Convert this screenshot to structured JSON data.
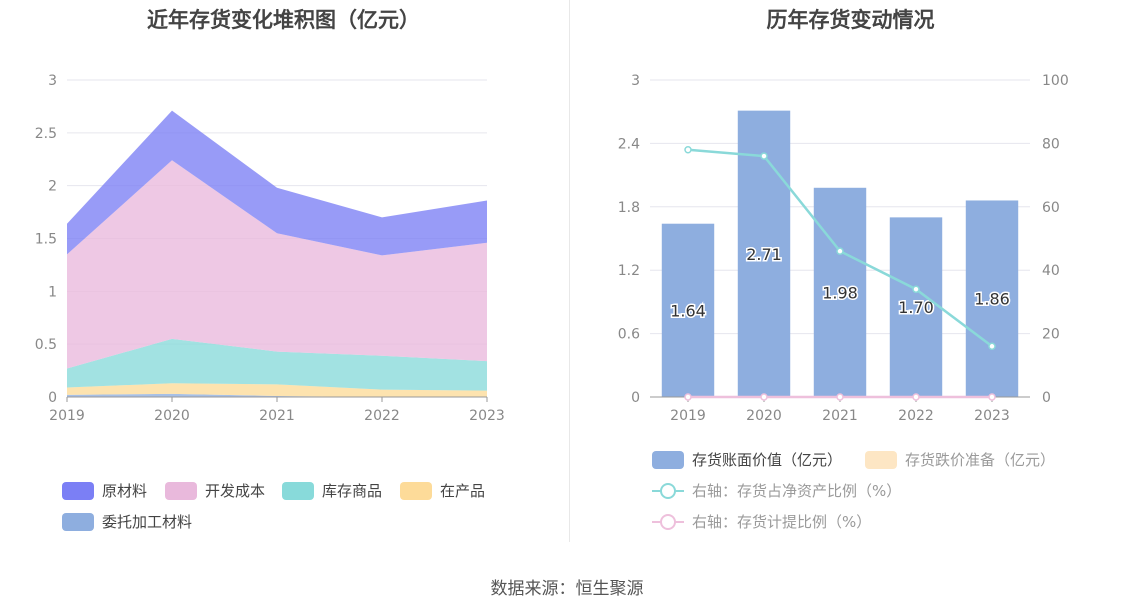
{
  "left_chart": {
    "title": "近年存货变化堆积图（亿元）",
    "legend": [
      {
        "name": "原材料",
        "color": "#7b7ff5"
      },
      {
        "name": "开发成本",
        "color": "#e9b9dc"
      },
      {
        "name": "库存商品",
        "color": "#88dada"
      },
      {
        "name": "在产品",
        "color": "#fddb99"
      },
      {
        "name": "委托加工材料",
        "color": "#8eaedf"
      }
    ]
  },
  "right_chart": {
    "title": "历年存货变动情况",
    "legend": [
      {
        "name": "存货账面价值（亿元）",
        "color": "#8eaedf",
        "kind": "box",
        "dim": false
      },
      {
        "name": "存货跌价准备（亿元）",
        "color": "#fde6c4",
        "kind": "box",
        "dim": true
      },
      {
        "name": "右轴：存货占净资产比例（%）",
        "color": "#8ad9d9",
        "kind": "line",
        "dim": true
      },
      {
        "name": "右轴：存货计提比例（%）",
        "color": "#eec0dc",
        "kind": "line",
        "dim": true
      }
    ]
  },
  "source": "数据来源：恒生聚源",
  "chart_data": [
    {
      "type": "area",
      "stacked": true,
      "title": "近年存货变化堆积图（亿元）",
      "categories": [
        "2019",
        "2020",
        "2021",
        "2022",
        "2023"
      ],
      "ylim": [
        0,
        3
      ],
      "yticks": [
        "0",
        "0.5",
        "1",
        "1.5",
        "2",
        "2.5",
        "3"
      ],
      "series": [
        {
          "name": "委托加工材料",
          "color": "#8eaedf",
          "values": [
            0.02,
            0.03,
            0.01,
            0.0,
            0.0
          ]
        },
        {
          "name": "在产品",
          "color": "#fddb99",
          "values": [
            0.07,
            0.1,
            0.11,
            0.07,
            0.06
          ]
        },
        {
          "name": "库存商品",
          "color": "#88dada",
          "values": [
            0.18,
            0.42,
            0.31,
            0.32,
            0.28
          ]
        },
        {
          "name": "开发成本",
          "color": "#e9b9dc",
          "values": [
            1.08,
            1.69,
            1.12,
            0.95,
            1.12
          ]
        },
        {
          "name": "原材料",
          "color": "#7b7ff5",
          "values": [
            0.29,
            0.47,
            0.43,
            0.36,
            0.4
          ]
        }
      ],
      "grid": true
    },
    {
      "type": "bar",
      "title": "历年存货变动情况",
      "categories": [
        "2019",
        "2020",
        "2021",
        "2022",
        "2023"
      ],
      "ylim": [
        0,
        3
      ],
      "yticks": [
        "0",
        "0.6",
        "1.2",
        "1.8",
        "2.4",
        "3"
      ],
      "y2lim": [
        0,
        100
      ],
      "y2ticks": [
        "0",
        "20",
        "40",
        "60",
        "80",
        "100"
      ],
      "series": [
        {
          "name": "存货账面价值（亿元）",
          "type": "bar",
          "axis": "left",
          "color": "#8eaedf",
          "values": [
            1.64,
            2.71,
            1.98,
            1.7,
            1.86
          ],
          "labels": [
            "1.64",
            "2.71",
            "1.98",
            "1.70",
            "1.86"
          ]
        },
        {
          "name": "右轴：存货占净资产比例（%）",
          "type": "line",
          "axis": "right",
          "color": "#8ad9d9",
          "values": [
            78,
            76,
            46,
            34,
            16
          ]
        },
        {
          "name": "右轴：存货计提比例（%）",
          "type": "line",
          "axis": "right",
          "color": "#eec0dc",
          "values": [
            0,
            0,
            0,
            0,
            0
          ]
        }
      ],
      "grid": true
    }
  ]
}
